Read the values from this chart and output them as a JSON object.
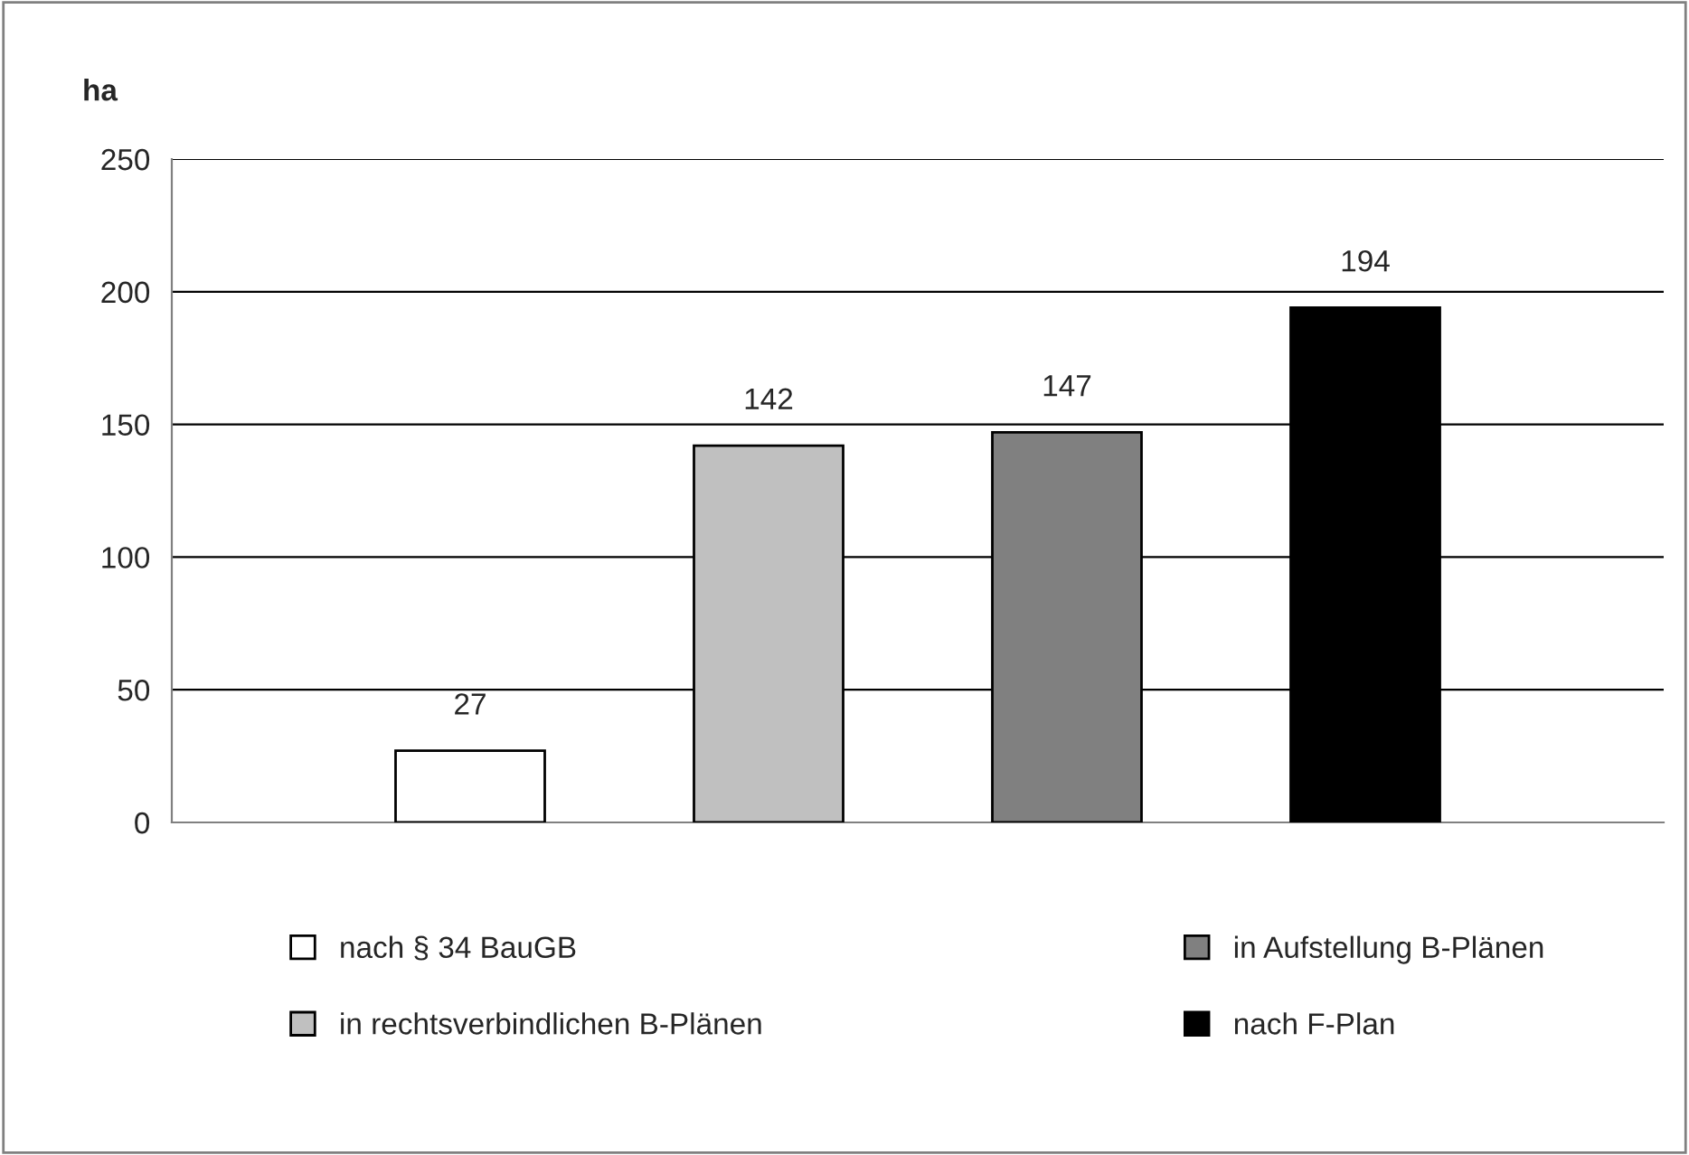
{
  "chart_data": {
    "type": "bar",
    "ylabel": "ha",
    "categories": [
      null
    ],
    "series": [
      {
        "name": "nach § 34 BauGB",
        "color": "#ffffff",
        "values": [
          27
        ]
      },
      {
        "name": "in rechtsverbindlichen B-Plänen",
        "color": "#c0c0c0",
        "values": [
          142
        ]
      },
      {
        "name": "in Aufstellung B-Plänen",
        "color": "#808080",
        "values": [
          147
        ]
      },
      {
        "name": "nach F-Plan",
        "color": "#000000",
        "values": [
          194
        ]
      }
    ],
    "ylim": [
      0,
      250
    ],
    "yticks": [
      0,
      50,
      100,
      150,
      200,
      250
    ],
    "grid": "y",
    "data_labels": true,
    "legend": "bottom"
  }
}
